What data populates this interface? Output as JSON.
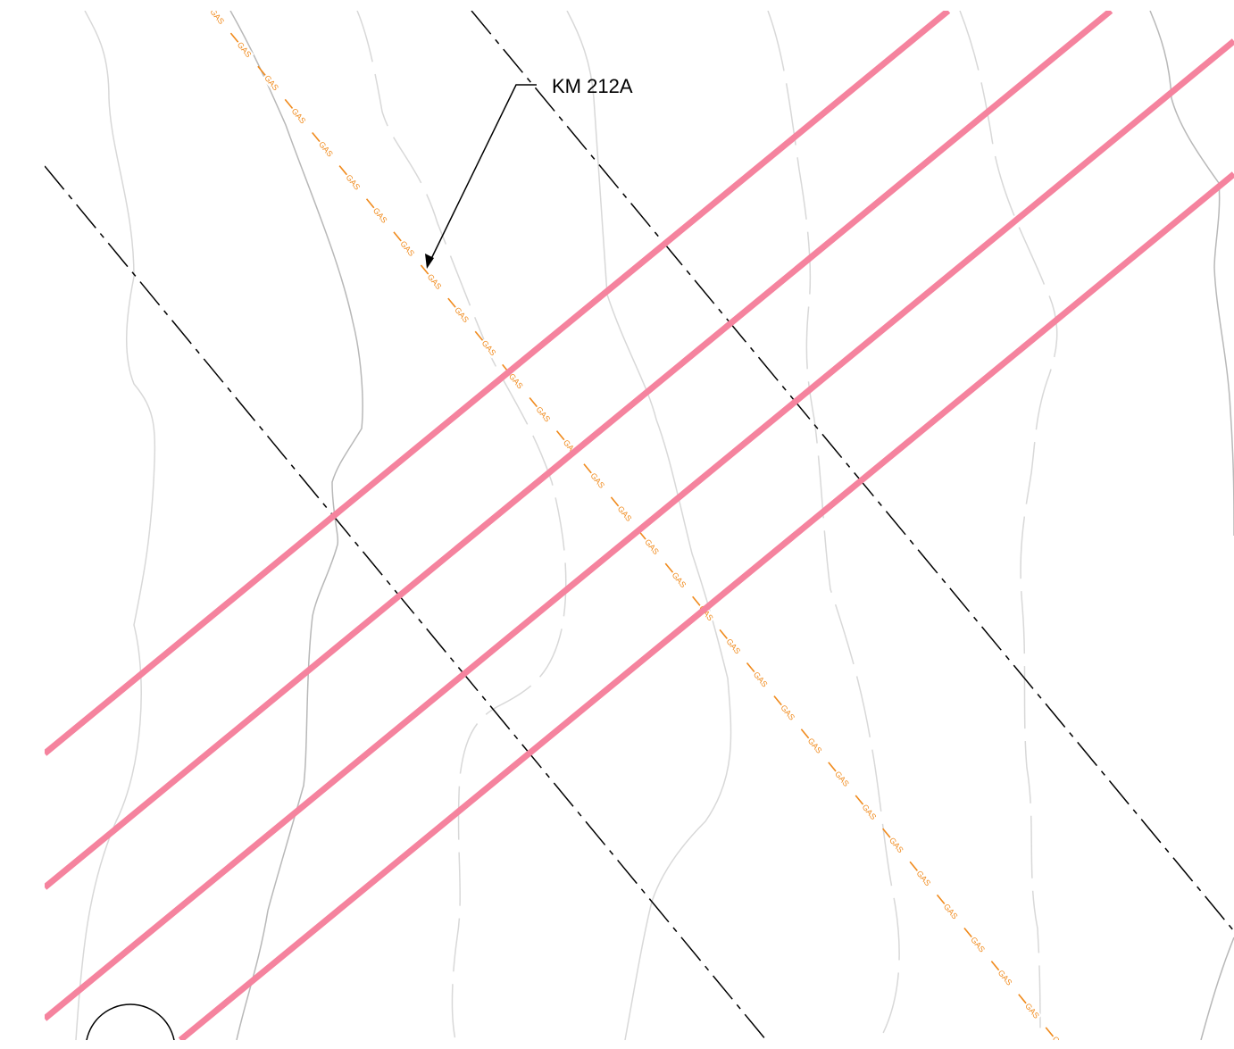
{
  "drawing": {
    "callout": {
      "label": "KM 212A"
    },
    "gas_line": {
      "tag": "GAS",
      "color": "#f08a1c"
    },
    "power_lines": {
      "color": "#f5839e",
      "count": 4
    },
    "boundary_lines": {
      "color": "#000000",
      "count": 2
    },
    "contour_colors": {
      "major": "#b8b8b8",
      "minor": "#d8d8d8"
    }
  }
}
